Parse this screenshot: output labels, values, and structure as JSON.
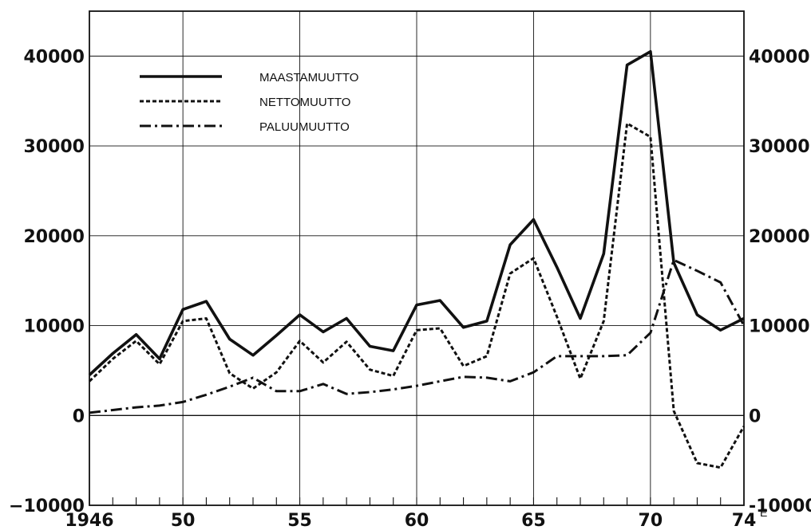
{
  "chart_data": {
    "type": "line",
    "x": [
      1946,
      1947,
      1948,
      1949,
      1950,
      1951,
      1952,
      1953,
      1954,
      1955,
      1956,
      1957,
      1958,
      1959,
      1960,
      1961,
      1962,
      1963,
      1964,
      1965,
      1966,
      1967,
      1968,
      1969,
      1970,
      1971,
      1972,
      1973,
      1974
    ],
    "x_tick_labels": [
      "1946",
      "50",
      "55",
      "60",
      "65",
      "70",
      "74"
    ],
    "x_tick_values": [
      1946,
      1950,
      1955,
      1960,
      1965,
      1970,
      1974
    ],
    "x_suffix": "E",
    "ylim": [
      -10000,
      45000
    ],
    "y_ticks": [
      -10000,
      0,
      10000,
      20000,
      30000,
      40000
    ],
    "y_tick_labels": [
      "−10000",
      "0",
      "10000",
      "20000",
      "30000",
      "40000"
    ],
    "y_tick_labels_right": [
      "-10000",
      "0",
      "10000",
      "20000",
      "30000",
      "40000"
    ],
    "legend_position": "top-left",
    "series": [
      {
        "name": "MAASTAMUUTTO",
        "style": "solid",
        "values": [
          4500,
          6900,
          9000,
          6300,
          11800,
          12700,
          8500,
          6700,
          8900,
          11200,
          9300,
          10800,
          7700,
          7200,
          12300,
          12800,
          9800,
          10500,
          19000,
          21800,
          16500,
          10800,
          18000,
          39000,
          40500,
          17000,
          11200,
          9500,
          10800
        ]
      },
      {
        "name": "NETTOMUUTTO",
        "style": "dotted",
        "values": [
          3800,
          6300,
          8300,
          5700,
          10500,
          10800,
          4700,
          3000,
          4800,
          8300,
          5900,
          8200,
          5100,
          4400,
          9500,
          9700,
          5500,
          6600,
          15800,
          17500,
          11000,
          4100,
          10500,
          32500,
          31000,
          500,
          -5300,
          -5800,
          -1200
        ]
      },
      {
        "name": "PALUUMUUTTO",
        "style": "dashdot",
        "values": [
          300,
          600,
          900,
          1100,
          1500,
          2300,
          3200,
          4200,
          2700,
          2700,
          3500,
          2400,
          2600,
          2900,
          3300,
          3800,
          4300,
          4200,
          3800,
          4800,
          6600,
          6600,
          6600,
          6700,
          9200,
          17300,
          16100,
          14800,
          10000
        ]
      }
    ]
  }
}
